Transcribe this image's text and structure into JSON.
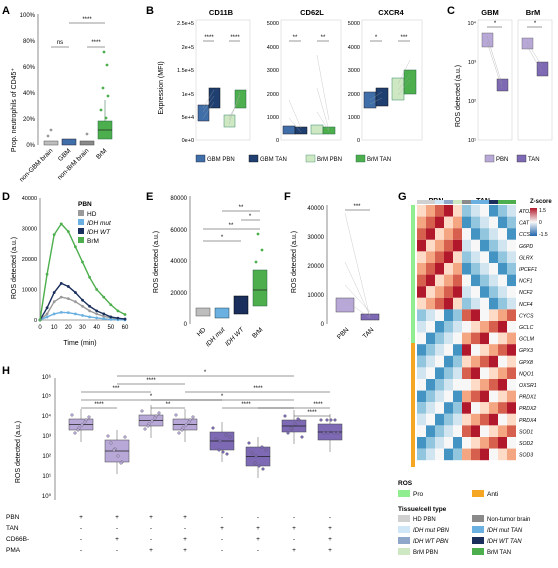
{
  "colors": {
    "grey": "#a9a9a9",
    "greyDark": "#7f7f7f",
    "gbmPbn": "#3f6ea8",
    "gbmTan": "#1f3f70",
    "brmPbn": "#cfe8c4",
    "brmTan": "#4cae4c",
    "idhMut": "#6ab0e0",
    "idhWt": "#1b2f5c",
    "purpleLight": "#b7a8d8",
    "purple": "#7d69b4",
    "pro": "#90ee90",
    "anti": "#f5a623"
  },
  "panelA": {
    "letter": "A",
    "ylabel": "Prop. neutrophils of CD45⁺",
    "ticks": [
      "0%",
      "20%",
      "40%",
      "60%",
      "80%",
      "100%"
    ],
    "categories": [
      "non-GBM brain",
      "GBM",
      "non-BrM brain",
      "BrM"
    ],
    "sig": [
      "ns",
      "****",
      "****"
    ]
  },
  "panelB": {
    "letter": "B",
    "ylabel": "Expression (MFI)",
    "facets": [
      {
        "title": "CD11B",
        "ticks": [
          "0e+0",
          "5e+4",
          "1e+5",
          "1.5e+5",
          "2e+5",
          "2.5e+5"
        ],
        "sig": [
          "****",
          "****"
        ]
      },
      {
        "title": "CD62L",
        "ticks": [
          "0",
          "1000",
          "2000",
          "3000",
          "4000",
          "5000"
        ],
        "sig": [
          "**",
          "**"
        ]
      },
      {
        "title": "CXCR4",
        "ticks": [
          "0",
          "1000",
          "2000",
          "3000",
          "4000",
          "5000"
        ],
        "sig": [
          "*",
          "***"
        ]
      }
    ],
    "legend": [
      "GBM PBN",
      "GBM TAN",
      "BrM PBN",
      "BrM TAN"
    ]
  },
  "panelC": {
    "letter": "C",
    "ylabel": "ROS detected (a.u.)",
    "facets": [
      "GBM",
      "BrM"
    ],
    "sig": [
      "*",
      "*"
    ],
    "ticks": [
      "10¹",
      "10²",
      "10³",
      "10⁴"
    ],
    "legend": [
      "PBN",
      "TAN"
    ]
  },
  "panelD": {
    "letter": "D",
    "ylabel": "ROS detected (a.u.)",
    "xlabel": "Time (min)",
    "legendTitle": "PBN",
    "legend": [
      "HD",
      "IDH mut",
      "IDH WT",
      "BrM"
    ],
    "yticks": [
      "0",
      "10000",
      "20000",
      "30000",
      "40000"
    ],
    "xticks": [
      "0",
      "10",
      "20",
      "30",
      "40",
      "50",
      "60"
    ],
    "chart_data": {
      "type": "line",
      "x": [
        0,
        5,
        10,
        15,
        20,
        25,
        30,
        35,
        40,
        45,
        50,
        55,
        60
      ],
      "ylim": [
        0,
        40000
      ],
      "series": [
        {
          "name": "HD",
          "values": [
            0,
            2000,
            6000,
            7500,
            7000,
            6000,
            4500,
            3000,
            2000,
            1200,
            700,
            400,
            200
          ]
        },
        {
          "name": "IDH mut",
          "values": [
            0,
            1000,
            2000,
            2500,
            2400,
            2000,
            1500,
            1000,
            700,
            400,
            200,
            100,
            50
          ]
        },
        {
          "name": "IDH WT",
          "values": [
            0,
            4000,
            9000,
            12000,
            11000,
            9000,
            6500,
            4500,
            3000,
            2000,
            1000,
            600,
            300
          ]
        },
        {
          "name": "BrM",
          "values": [
            0,
            15000,
            28000,
            31500,
            29000,
            24000,
            19000,
            14000,
            10000,
            7500,
            5000,
            3000,
            1800
          ]
        }
      ]
    }
  },
  "panelE": {
    "letter": "E",
    "ylabel": "ROS detected (a.u.)",
    "ticks": [
      "0",
      "20000",
      "40000",
      "60000",
      "80000"
    ],
    "categories": [
      "HD",
      "IDH mut",
      "IDH WT",
      "BrM"
    ],
    "sig": [
      "*",
      "**",
      "**",
      "*"
    ]
  },
  "panelF": {
    "letter": "F",
    "ylabel": "ROS detected (a.u.)",
    "ticks": [
      "0",
      "10000",
      "20000",
      "30000",
      "40000"
    ],
    "categories": [
      "PBN",
      "TAN"
    ],
    "sig": [
      "***"
    ]
  },
  "panelG": {
    "letter": "G",
    "colgroups": [
      "PBN",
      "TAN"
    ],
    "zscore": "Z-score",
    "zticks": [
      "1.5",
      "0",
      "-1.5"
    ],
    "genes": [
      "ATOX1",
      "CAT",
      "CCS",
      "G6PD",
      "GLRX",
      "IPCEF1",
      "NCF1",
      "NCF2",
      "NCF4",
      "CYCS",
      "GCLC",
      "GCLM",
      "GPX3",
      "GPX8",
      "NQO1",
      "OXSR1",
      "PRDX1",
      "PRDX2",
      "PRDX4",
      "SOD1",
      "SOD2",
      "SOD3"
    ],
    "rosTitle": "ROS",
    "rosItems": [
      "Pro",
      "Anti"
    ],
    "tissueTitle": "Tissue/cell type",
    "tissueItems": [
      "HD PBN",
      "Non-tumor brain",
      "IDH mut PBN",
      "IDH mut TAN",
      "IDH WT PBN",
      "IDH WT TAN",
      "BrM PBN",
      "BrM TAN"
    ]
  },
  "panelH": {
    "letter": "H",
    "ylabel": "ROS detected (a.u.)",
    "ticks": [
      "10⁰",
      "10¹",
      "10²",
      "10³",
      "10⁴",
      "10⁵",
      "10⁶"
    ],
    "rows": [
      "PBN",
      "TAN",
      "CD66B-",
      "PMA"
    ],
    "signs": [
      [
        "+",
        "+",
        "+",
        "+",
        "-",
        "-",
        "-",
        "-"
      ],
      [
        "-",
        "-",
        "-",
        "-",
        "+",
        "+",
        "+",
        "+"
      ],
      [
        "-",
        "+",
        "-",
        "+",
        "-",
        "+",
        "-",
        "+"
      ],
      [
        "-",
        "-",
        "+",
        "+",
        "-",
        "-",
        "+",
        "+"
      ]
    ],
    "sig": [
      "*",
      "****",
      "***",
      "****",
      "*",
      "*",
      "****",
      "**",
      "****",
      "****",
      "****"
    ]
  }
}
